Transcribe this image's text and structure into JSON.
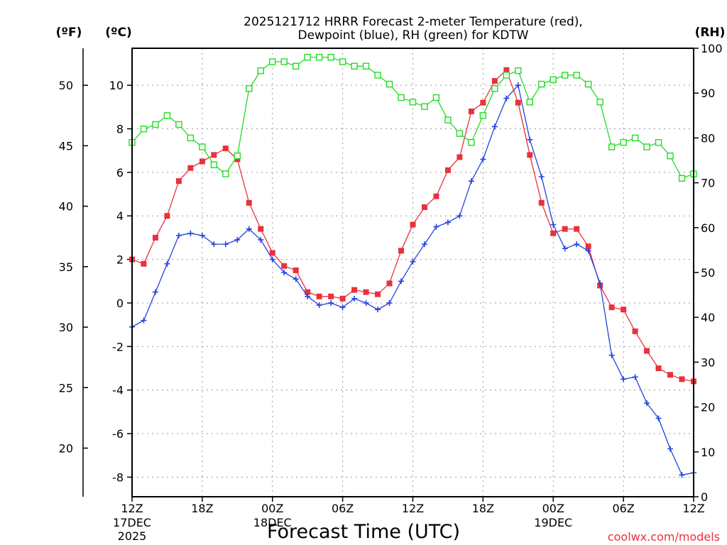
{
  "chart_data": {
    "type": "line",
    "title_line1": "2025121712 HRRR Forecast 2-meter Temperature (red),",
    "title_line2": "Dewpoint (blue), RH (green) for KDTW",
    "xlabel": "Forecast Time (UTC)",
    "credit": "coolwx.com/models",
    "unit_f": "(ºF)",
    "unit_c": "(ºC)",
    "unit_rh": "(RH)",
    "x_hours": [
      0,
      1,
      2,
      3,
      4,
      5,
      6,
      7,
      8,
      9,
      10,
      11,
      12,
      13,
      14,
      15,
      16,
      17,
      18,
      19,
      20,
      21,
      22,
      23,
      24,
      25,
      26,
      27,
      28,
      29,
      30,
      31,
      32,
      33,
      34,
      35,
      36,
      37,
      38,
      39,
      40,
      41,
      42,
      43,
      44,
      45,
      46,
      47,
      48
    ],
    "xlim": [
      0,
      48
    ],
    "ylim_c": [
      -8.9,
      11.7
    ],
    "ylim_rh": [
      0,
      100
    ],
    "x_ticks": [
      {
        "label": "12Z",
        "label2": "17DEC",
        "label3": "2025"
      },
      {
        "label": "18Z",
        "label2": "",
        "label3": ""
      },
      {
        "label": "00Z",
        "label2": "18DEC",
        "label3": ""
      },
      {
        "label": "06Z",
        "label2": "",
        "label3": ""
      },
      {
        "label": "12Z",
        "label2": "",
        "label3": ""
      },
      {
        "label": "18Z",
        "label2": "",
        "label3": ""
      },
      {
        "label": "00Z",
        "label2": "19DEC",
        "label3": ""
      },
      {
        "label": "06Z",
        "label2": "",
        "label3": ""
      },
      {
        "label": "12Z",
        "label2": "",
        "label3": ""
      }
    ],
    "c_ticks": [
      "-8",
      "-6",
      "-4",
      "-2",
      "0",
      "2",
      "4",
      "6",
      "8",
      "10"
    ],
    "c_tick_values": [
      -8,
      -6,
      -4,
      -2,
      0,
      2,
      4,
      6,
      8,
      10
    ],
    "f_ticks": [
      "20",
      "25",
      "30",
      "35",
      "40",
      "45",
      "50"
    ],
    "f_tick_values": [
      20,
      25,
      30,
      35,
      40,
      45,
      50
    ],
    "rh_ticks": [
      "0",
      "10",
      "20",
      "30",
      "40",
      "50",
      "60",
      "70",
      "80",
      "90",
      "100"
    ],
    "rh_tick_values": [
      0,
      10,
      20,
      30,
      40,
      50,
      60,
      70,
      80,
      90,
      100
    ],
    "series": [
      {
        "name": "Temperature",
        "color": "#e8323c",
        "marker": "square-filled",
        "axis": "c",
        "values": [
          2.0,
          1.8,
          3.0,
          4.0,
          5.6,
          6.2,
          6.5,
          6.8,
          7.1,
          6.6,
          4.6,
          3.4,
          2.3,
          1.7,
          1.5,
          0.5,
          0.3,
          0.3,
          0.2,
          0.6,
          0.5,
          0.4,
          0.9,
          2.4,
          3.6,
          4.4,
          4.9,
          6.1,
          6.7,
          8.8,
          9.2,
          10.2,
          10.7,
          9.2,
          6.8,
          4.6,
          3.2,
          3.4,
          3.4,
          2.6,
          0.8,
          -0.2,
          -0.3,
          -1.3,
          -2.2,
          -3.0,
          -3.3,
          -3.5,
          -3.6
        ]
      },
      {
        "name": "Dewpoint",
        "color": "#2244dd",
        "marker": "plus",
        "axis": "c",
        "values": [
          -1.1,
          -0.8,
          0.5,
          1.8,
          3.1,
          3.2,
          3.1,
          2.7,
          2.7,
          2.9,
          3.4,
          2.9,
          2.0,
          1.4,
          1.1,
          0.3,
          -0.1,
          0.0,
          -0.2,
          0.2,
          0.0,
          -0.3,
          0.0,
          1.0,
          1.9,
          2.7,
          3.5,
          3.7,
          4.0,
          5.6,
          6.6,
          8.1,
          9.4,
          10.0,
          7.5,
          5.8,
          3.6,
          2.5,
          2.7,
          2.4,
          0.9,
          -2.4,
          -3.5,
          -3.4,
          -4.6,
          -5.3,
          -6.7,
          -7.9,
          -7.8
        ]
      },
      {
        "name": "RH",
        "color": "#22dd22",
        "marker": "square-open",
        "axis": "rh",
        "values": [
          79,
          82,
          83,
          85,
          83,
          80,
          78,
          74,
          72,
          76,
          91,
          95,
          97,
          97,
          96,
          98,
          98,
          98,
          97,
          96,
          96,
          94,
          92,
          89,
          88,
          87,
          89,
          84,
          81,
          79,
          85,
          91,
          94,
          95,
          88,
          92,
          93,
          94,
          94,
          92,
          88,
          78,
          79,
          80,
          78,
          79,
          76,
          71,
          72
        ]
      }
    ]
  }
}
